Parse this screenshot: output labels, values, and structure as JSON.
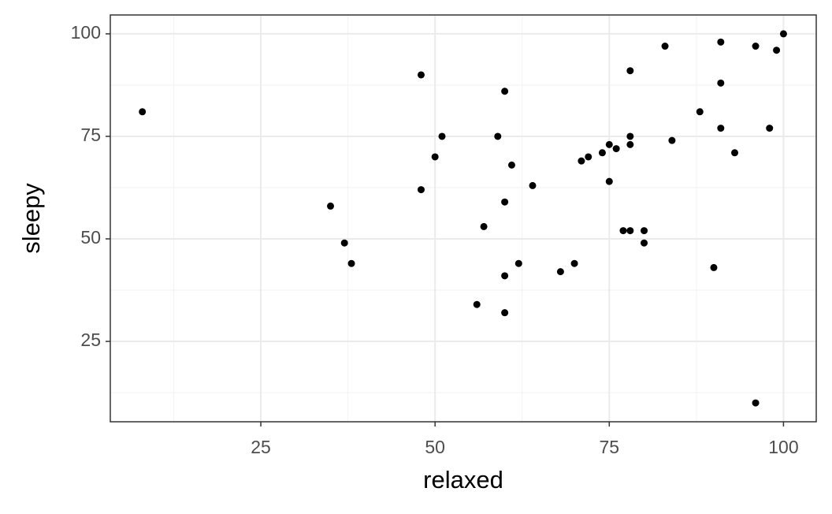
{
  "chart_data": {
    "type": "scatter",
    "x_label": "relaxed",
    "y_label": "sleepy",
    "x": [
      8,
      35,
      37,
      38,
      48,
      48,
      50,
      51,
      56,
      57,
      59,
      60,
      60,
      60,
      60,
      61,
      62,
      64,
      68,
      70,
      71,
      72,
      74,
      75,
      75,
      76,
      77,
      78,
      78,
      78,
      78,
      80,
      80,
      83,
      84,
      88,
      90,
      91,
      91,
      91,
      93,
      96,
      96,
      98,
      99,
      100
    ],
    "y": [
      81,
      58,
      49,
      44,
      62,
      90,
      70,
      75,
      34,
      53,
      75,
      86,
      59,
      41,
      32,
      68,
      44,
      63,
      42,
      44,
      69,
      70,
      71,
      73,
      64,
      72,
      52,
      91,
      75,
      73,
      52,
      52,
      49,
      97,
      74,
      81,
      43,
      98,
      88,
      77,
      71,
      97,
      10,
      77,
      96,
      100
    ],
    "color": "#000000",
    "xlim": [
      3.4,
      104.7
    ],
    "ylim": [
      5.4,
      104.6
    ],
    "xticks": [
      25,
      50,
      75,
      100
    ],
    "yticks": [
      25,
      50,
      75,
      100
    ],
    "grid": true
  }
}
